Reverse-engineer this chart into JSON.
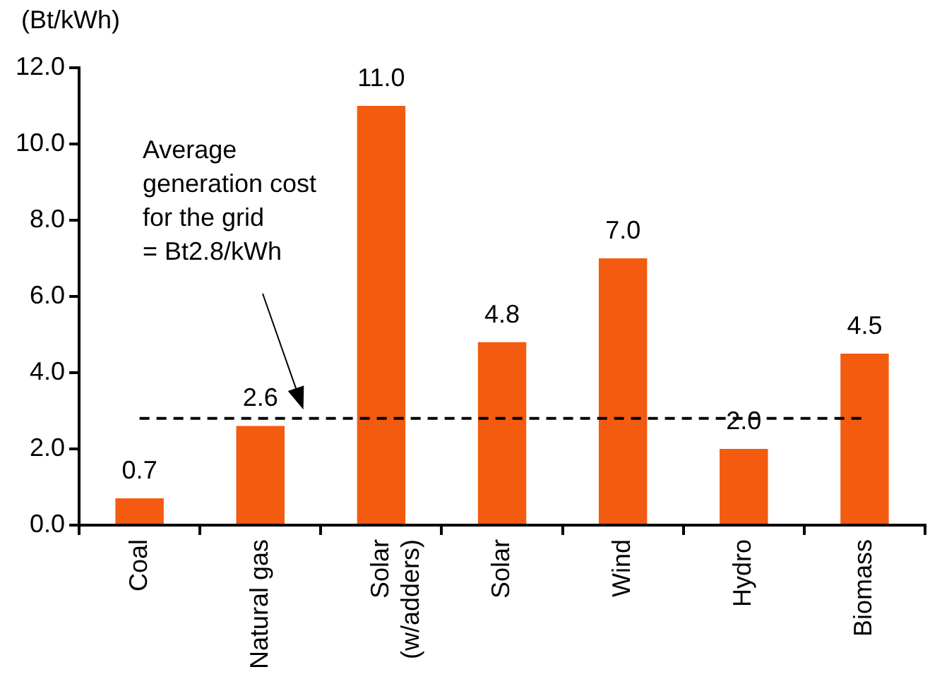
{
  "chart_data": {
    "type": "bar",
    "ylabel": "(Bt/kWh)",
    "categories": [
      "Coal",
      "Natural gas",
      "Solar (w/adders)",
      "Solar",
      "Wind",
      "Hydro",
      "Biomass"
    ],
    "values": [
      0.7,
      2.6,
      11.0,
      4.8,
      7.0,
      2.0,
      4.5
    ],
    "value_labels": [
      "0.7",
      "2.6",
      "11.0",
      "4.8",
      "7.0",
      "2.0",
      "4.5"
    ],
    "color": "#f35b10",
    "ylim": [
      0,
      12
    ],
    "yticks": [
      {
        "value": 0,
        "label": "0.0"
      },
      {
        "value": 2,
        "label": "2.0"
      },
      {
        "value": 4,
        "label": "4.0"
      },
      {
        "value": 6,
        "label": "6.0"
      },
      {
        "value": 8,
        "label": "8.0"
      },
      {
        "value": 10,
        "label": "10.0"
      },
      {
        "value": 12,
        "label": "12.0"
      }
    ],
    "grid": false,
    "legend": false,
    "ref_lines": [
      {
        "axis": "y",
        "value": 2.8,
        "color": "#000000",
        "line_style": "dashed"
      }
    ],
    "annotations": [
      "Average\ngeneration cost\nfor the grid\n= Bt2.8/kWh"
    ]
  }
}
